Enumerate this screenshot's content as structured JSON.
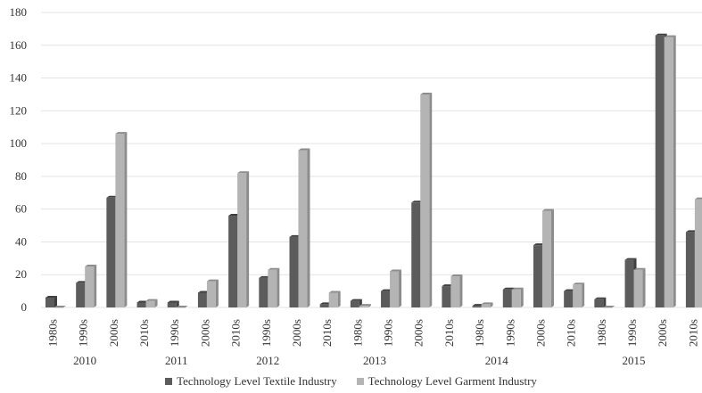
{
  "chart_data": {
    "type": "bar",
    "style": "3d-clustered-column",
    "y_ticks": [
      "0",
      "20",
      "40",
      "60",
      "80",
      "100",
      "120",
      "140",
      "160",
      "180"
    ],
    "ylim": [
      0,
      180
    ],
    "grid": true,
    "legend_position": "bottom",
    "colors": {
      "textile_front": "#5c5c5c",
      "textile_side": "#3f3f3f",
      "garment_front": "#b4b4b4",
      "garment_side": "#8c8c8c",
      "grid": "#e3e3e3"
    },
    "groups": [
      {
        "label": "2010",
        "categories": [
          "1980s",
          "1990s",
          "2000s"
        ]
      },
      {
        "label": "2011",
        "categories": [
          "2010s",
          "1990s",
          "2000s"
        ]
      },
      {
        "label": "2012",
        "categories": [
          "2010s",
          "1990s",
          "2000s"
        ]
      },
      {
        "label": "2013",
        "categories": [
          "2010s",
          "1980s",
          "1990s",
          "2000s"
        ]
      },
      {
        "label": "2014",
        "categories": [
          "2010s",
          "1980s",
          "1990s",
          "2000s"
        ]
      },
      {
        "label": "2015",
        "categories": [
          "2010s",
          "1980s",
          "1990s",
          "2000s",
          "2010s"
        ]
      }
    ],
    "categories": [
      "1980s",
      "1990s",
      "2000s",
      "2010s",
      "1990s",
      "2000s",
      "2010s",
      "1990s",
      "2000s",
      "2010s",
      "1980s",
      "1990s",
      "2000s",
      "2010s",
      "1980s",
      "1990s",
      "2000s",
      "2010s",
      "1980s",
      "1990s",
      "2000s",
      "2010s"
    ],
    "series": [
      {
        "name": "Technology Level Textile Industry",
        "values": [
          6,
          15,
          67,
          3,
          3,
          9,
          56,
          18,
          43,
          2,
          4,
          10,
          64,
          13,
          1,
          11,
          38,
          10,
          5,
          29,
          166,
          46
        ]
      },
      {
        "name": "Technology Level Garment Industry",
        "values": [
          0,
          25,
          106,
          4,
          0,
          16,
          82,
          23,
          96,
          9,
          1,
          22,
          130,
          19,
          2,
          11,
          59,
          14,
          0,
          23,
          165,
          66
        ]
      }
    ]
  }
}
